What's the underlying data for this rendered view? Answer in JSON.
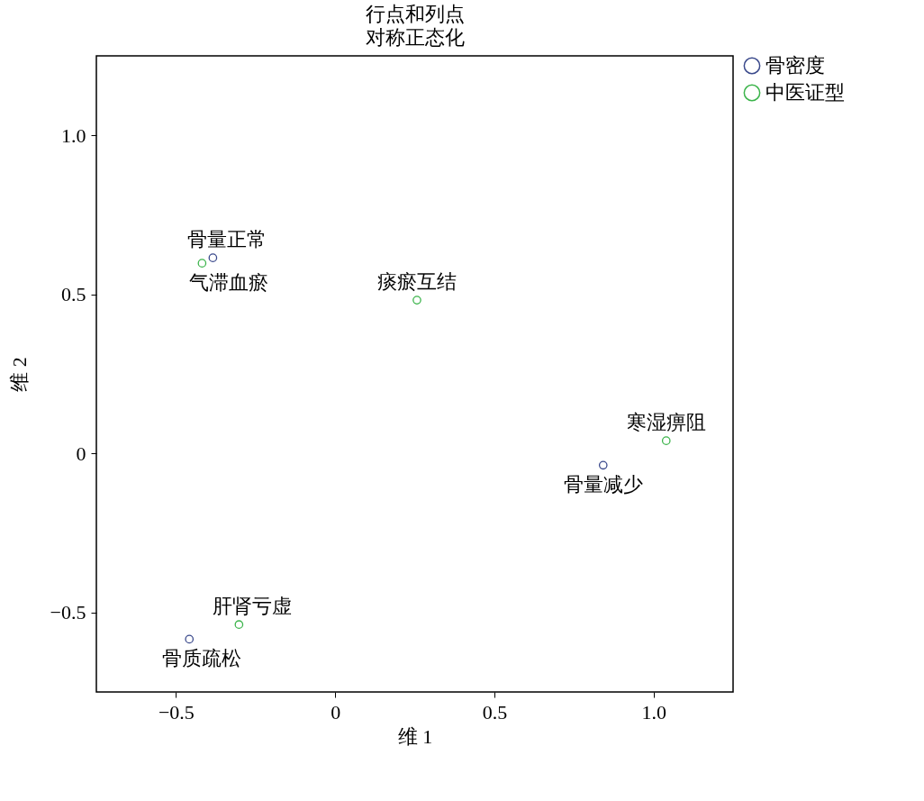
{
  "chart_data": {
    "type": "scatter",
    "title": "行点和列点",
    "subtitle": "对称正态化",
    "xlabel": "维 1",
    "ylabel": "维 2",
    "xlim": [
      -0.75,
      1.25
    ],
    "ylim": [
      -0.75,
      1.25
    ],
    "xticks": [
      {
        "value": -0.5,
        "label": "−0.5"
      },
      0,
      0.5,
      {
        "value": 1,
        "label": "1.0"
      }
    ],
    "yticks": [
      {
        "value": -0.5,
        "label": "−0.5"
      },
      0,
      0.5,
      {
        "value": 1,
        "label": "1.0"
      }
    ],
    "grid": false,
    "legend": "right",
    "marker": "circle",
    "series": [
      {
        "name": "骨密度",
        "color": "#3b4a8c",
        "x": [
          -0.384,
          0.842,
          -0.458
        ],
        "values": [
          0.615,
          -0.037,
          -0.584
        ]
      },
      {
        "name": "中医证型",
        "color": "#3cb44b",
        "x": [
          -0.418,
          0.257,
          1.04,
          -0.302
        ],
        "values": [
          0.598,
          0.482,
          0.04,
          -0.538
        ]
      }
    ],
    "annotations": [
      {
        "text": "骨量正常",
        "x": -0.384,
        "y": 0.615
      },
      {
        "text": "气滞血瘀",
        "x": -0.418,
        "y": 0.598
      },
      {
        "text": "痰瘀互结",
        "x": 0.257,
        "y": 0.482
      },
      {
        "text": "寒湿痹阻",
        "x": 1.04,
        "y": 0.04
      },
      {
        "text": "骨量减少",
        "x": 0.842,
        "y": -0.037
      },
      {
        "text": "肝肾亏虚",
        "x": -0.302,
        "y": -0.538
      },
      {
        "text": "骨质疏松",
        "x": -0.458,
        "y": -0.584
      }
    ]
  }
}
